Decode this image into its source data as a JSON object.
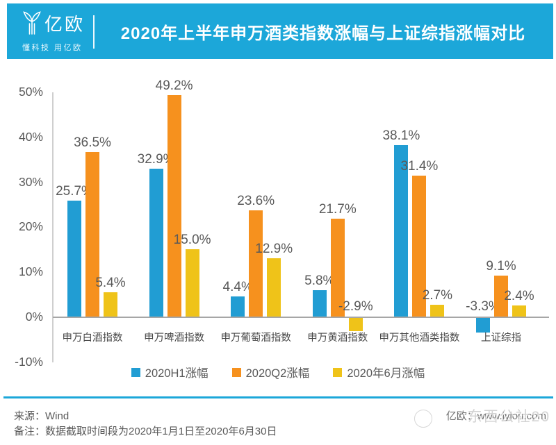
{
  "header": {
    "logo_text": "亿欧",
    "logo_tagline": "懂科技 用亿欧",
    "title": "2020年上半年申万酒类指数涨幅与上证综指涨幅对比",
    "brand_color": "#1CA7D9"
  },
  "chart_data": {
    "type": "bar",
    "categories": [
      "申万白酒指数",
      "申万啤酒指数",
      "申万葡萄酒指数",
      "申万黄酒指数",
      "申万其他酒类指数",
      "上证综指"
    ],
    "series": [
      {
        "name": "2020H1涨幅",
        "color": "#219DD3",
        "values": [
          25.7,
          32.9,
          4.4,
          5.8,
          38.1,
          -3.3
        ]
      },
      {
        "name": "2020Q2涨幅",
        "color": "#F6911E",
        "values": [
          36.5,
          49.2,
          23.6,
          21.7,
          31.4,
          9.1
        ]
      },
      {
        "name": "2020年6月涨幅",
        "color": "#EFC319",
        "values": [
          5.4,
          15.0,
          12.9,
          -2.9,
          2.7,
          2.4
        ]
      }
    ],
    "y_ticks": [
      50,
      40,
      30,
      20,
      10,
      0,
      -10
    ],
    "y_tick_suffix": "%",
    "ylim": [
      -10,
      50
    ],
    "value_suffix": "%",
    "value_decimals": 1,
    "grid": false,
    "legend_position": "bottom",
    "label_color": "#595959"
  },
  "footer": {
    "source_label": "来源：",
    "source_value": "Wind",
    "note_label": "备注：",
    "note_value": "数据截取时间段为2020年1月1日至2020年6月30日",
    "site_credit": "亿欧：www.iyiou.com",
    "watermark": "东西公社20"
  }
}
